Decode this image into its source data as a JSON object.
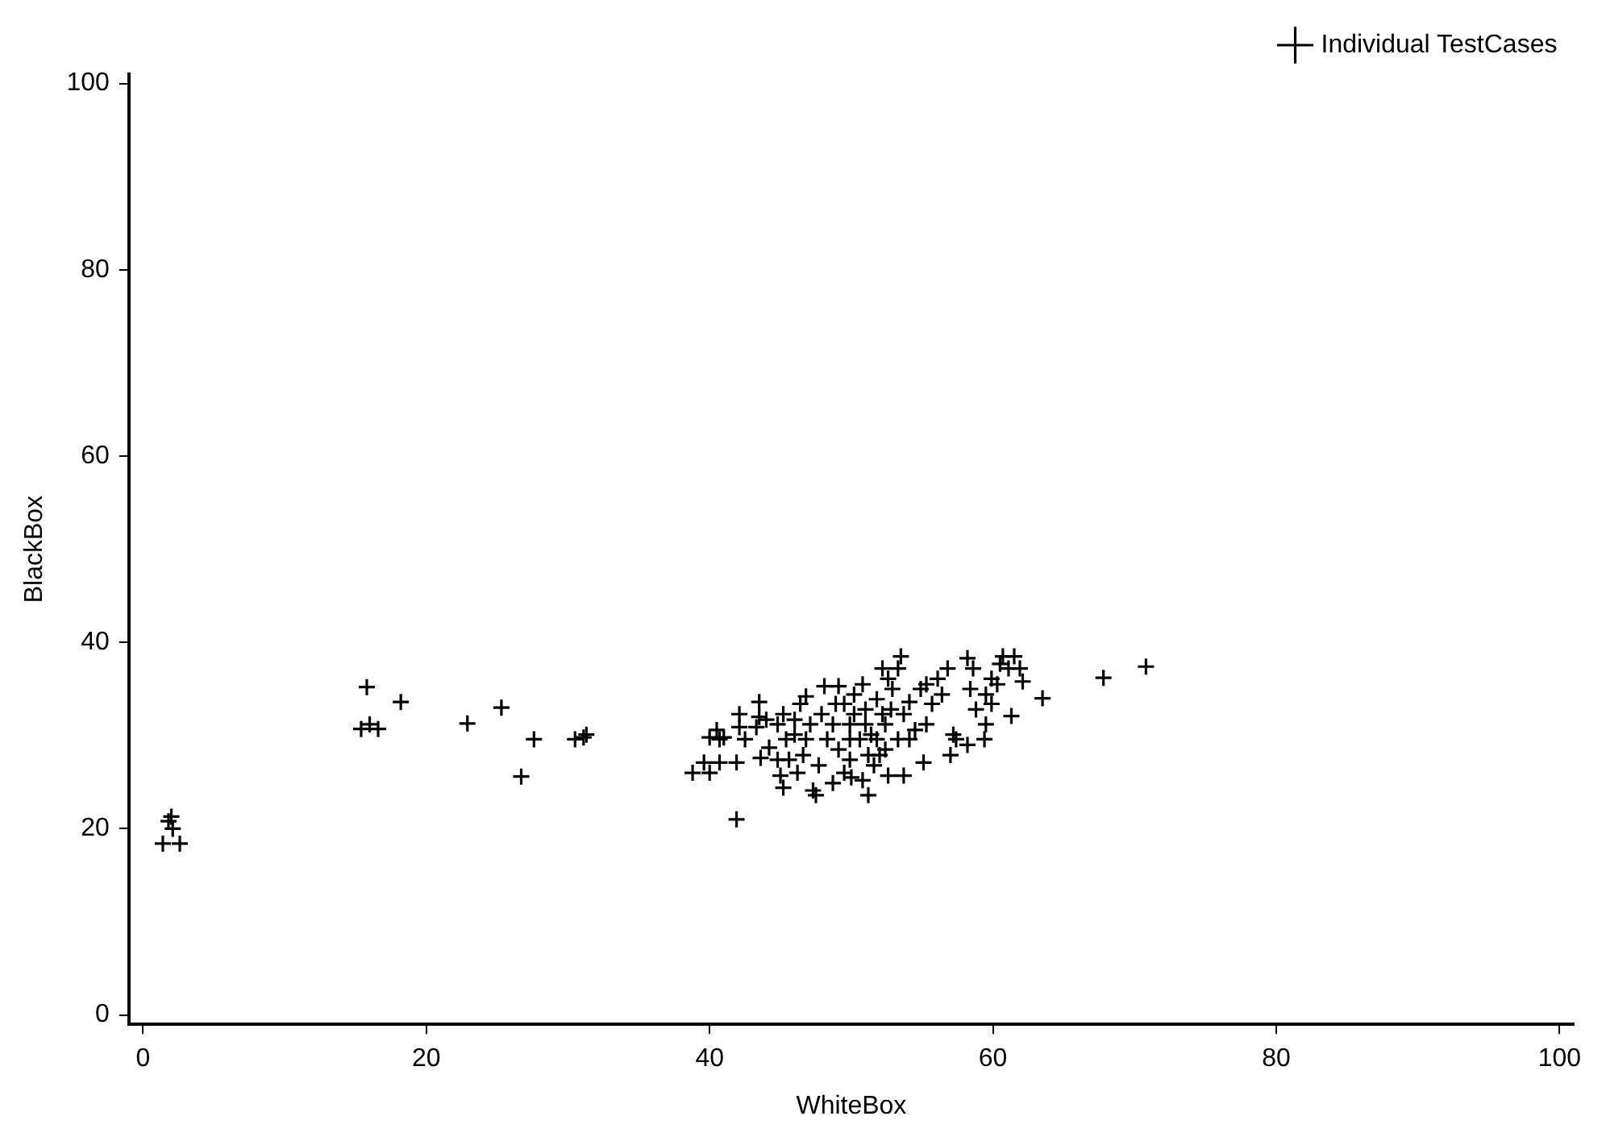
{
  "chart_data": {
    "type": "scatter",
    "xlabel": "WhiteBox",
    "ylabel": "BlackBox",
    "xlim": [
      -1,
      101
    ],
    "ylim": [
      -1,
      101
    ],
    "xticks": [
      0,
      20,
      40,
      60,
      80,
      100
    ],
    "yticks": [
      0,
      20,
      40,
      60,
      80,
      100
    ],
    "grid": false,
    "legend": "top right",
    "marker": "cross",
    "series": [
      {
        "name": "Individual TestCases",
        "color": "#000000",
        "x": [
          1.8,
          2.1,
          1.4,
          2.6,
          2.0,
          15.8,
          18.2,
          15.4,
          16.0,
          16.6,
          22.9,
          25.3,
          27.6,
          26.7,
          30.5,
          31.1,
          31.3,
          41.9,
          63.5,
          67.8,
          70.8,
          61.3,
          38.8,
          40.0,
          39.6,
          40.7,
          41.9,
          40.0,
          40.5,
          40.7,
          42.1,
          42.1,
          42.5,
          43.5,
          43.5,
          43.3,
          44.2,
          43.6,
          45.2,
          45.0,
          44.8,
          45.4,
          45.2,
          46.0,
          46.4,
          46.8,
          47.1,
          46.6,
          46.2,
          47.3,
          47.5,
          47.7,
          48.3,
          48.1,
          49.1,
          48.9,
          47.9,
          48.7,
          49.5,
          50.0,
          49.9,
          49.1,
          49.9,
          49.5,
          50.2,
          50.8,
          51.0,
          50.6,
          51.2,
          51.6,
          51.8,
          51.2,
          52.2,
          52.6,
          53.3,
          53.5,
          52.9,
          52.8,
          52.4,
          52.4,
          52.6,
          53.7,
          53.3,
          53.7,
          54.1,
          54.5,
          55.1,
          54.9,
          55.3,
          55.7,
          56.1,
          56.4,
          56.8,
          57.0,
          57.2,
          57.4,
          58.2,
          58.2,
          58.6,
          58.4,
          58.8,
          59.4,
          59.5,
          59.9,
          59.5,
          60.3,
          60.5,
          60.7,
          61.1,
          61.5,
          61.9,
          62.1,
          59.9,
          55.3,
          54.1,
          51.0,
          49.9,
          46.8,
          45.6,
          46.0,
          44.0,
          44.8,
          41.0,
          50.8,
          52.0,
          51.4,
          52.2,
          51.8,
          50.2,
          48.7
        ],
        "values": [
          20.8,
          20.0,
          18.4,
          18.4,
          21.3,
          35.2,
          33.6,
          30.7,
          31.2,
          30.7,
          31.3,
          33.0,
          29.6,
          25.6,
          29.6,
          29.8,
          30.1,
          21.0,
          34.0,
          36.2,
          37.4,
          32.1,
          26.0,
          26.0,
          27.1,
          27.1,
          27.1,
          29.8,
          30.6,
          29.6,
          32.3,
          30.9,
          29.6,
          33.6,
          32.0,
          30.9,
          28.7,
          27.6,
          24.4,
          25.7,
          27.4,
          29.6,
          32.3,
          31.7,
          33.4,
          34.2,
          31.2,
          27.9,
          26.0,
          24.1,
          23.6,
          26.8,
          29.6,
          35.3,
          35.3,
          33.4,
          32.3,
          24.9,
          26.0,
          25.5,
          27.4,
          28.5,
          31.2,
          33.4,
          34.4,
          35.5,
          32.8,
          29.6,
          27.9,
          26.8,
          29.6,
          23.6,
          37.2,
          36.1,
          37.2,
          38.5,
          35.0,
          32.8,
          31.2,
          28.5,
          25.7,
          25.7,
          29.6,
          32.3,
          33.6,
          30.6,
          27.1,
          35.0,
          35.5,
          33.4,
          36.1,
          34.4,
          37.2,
          27.9,
          30.1,
          29.6,
          29.0,
          38.3,
          37.2,
          35.0,
          32.8,
          29.6,
          31.2,
          36.1,
          34.4,
          35.5,
          37.7,
          38.5,
          37.2,
          38.5,
          37.2,
          35.8,
          33.4,
          31.2,
          29.6,
          31.2,
          29.6,
          29.6,
          27.4,
          30.1,
          31.7,
          31.2,
          29.8,
          25.2,
          27.9,
          30.1,
          32.3,
          33.9,
          32.3,
          31.2
        ]
      }
    ]
  }
}
